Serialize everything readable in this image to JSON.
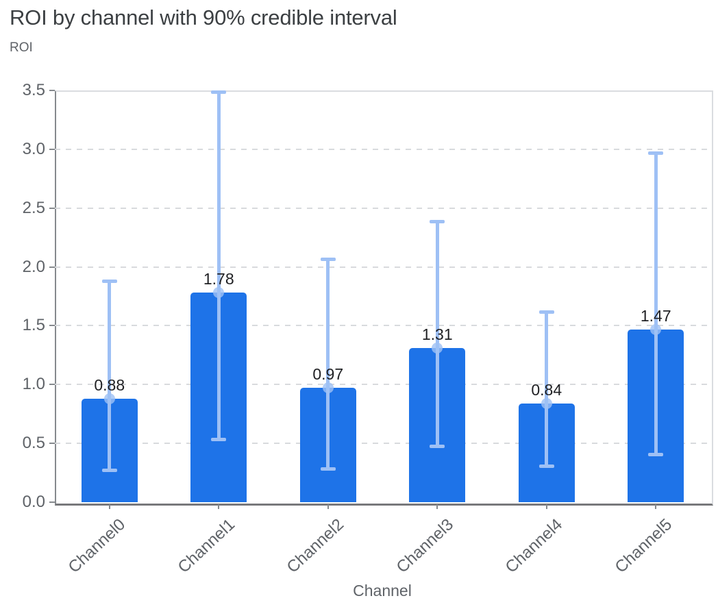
{
  "header": {
    "title": "ROI by channel with 90% credible interval",
    "y_axis_title": "ROI"
  },
  "chart_data": {
    "type": "bar",
    "title": "ROI by channel with 90% credible interval",
    "xlabel": "Channel",
    "ylabel": "ROI",
    "categories": [
      "Channel0",
      "Channel1",
      "Channel2",
      "Channel3",
      "Channel4",
      "Channel5"
    ],
    "values": [
      0.88,
      1.78,
      0.97,
      1.31,
      0.84,
      1.47
    ],
    "value_labels": [
      "0.88",
      "1.78",
      "0.97",
      "1.31",
      "0.84",
      "1.47"
    ],
    "error_low": [
      0.27,
      0.53,
      0.28,
      0.47,
      0.3,
      0.4
    ],
    "error_high": [
      1.88,
      3.49,
      2.07,
      2.39,
      1.62,
      2.97
    ],
    "error_note": "90% credible interval whiskers with cap and mean dot",
    "ylim": [
      0,
      3.5
    ],
    "ytick_labels": [
      "0.0",
      "0.5",
      "1.0",
      "1.5",
      "2.0",
      "2.5",
      "3.0",
      "3.5"
    ],
    "grid": "horizontal dashed",
    "legend": "none",
    "colors": {
      "bar": "#1e73e8",
      "error": "#9ec0f5",
      "title_text": "#3c4043",
      "axis_text": "#5f6368",
      "value_text": "#202124",
      "gridline": "#d8dadd",
      "axis_line": "#77787b",
      "background": "#ffffff"
    }
  }
}
